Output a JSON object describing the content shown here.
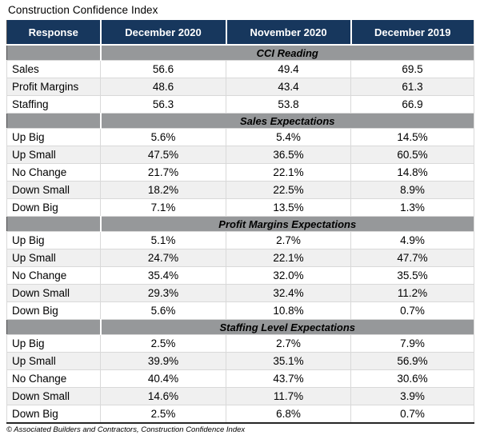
{
  "title": "Construction Confidence Index",
  "footer": "© Associated Builders and Contractors, Construction Confidence Index",
  "colors": {
    "header_bg": "#17375D",
    "header_text": "#FFFFFF",
    "band_bg": "#96989A",
    "alt_row_bg": "#F0F0F0"
  },
  "chart_data": {
    "type": "table",
    "title": "Construction Confidence Index",
    "columns": [
      "Response",
      "December 2020",
      "November 2020",
      "December 2019"
    ],
    "sections": [
      {
        "header": "CCI Reading",
        "rows": [
          {
            "label": "Sales",
            "values": [
              "56.6",
              "49.4",
              "69.5"
            ]
          },
          {
            "label": "Profit Margins",
            "values": [
              "48.6",
              "43.4",
              "61.3"
            ]
          },
          {
            "label": "Staffing",
            "values": [
              "56.3",
              "53.8",
              "66.9"
            ]
          }
        ]
      },
      {
        "header": "Sales Expectations",
        "rows": [
          {
            "label": "Up Big",
            "values": [
              "5.6%",
              "5.4%",
              "14.5%"
            ]
          },
          {
            "label": "Up Small",
            "values": [
              "47.5%",
              "36.5%",
              "60.5%"
            ]
          },
          {
            "label": "No Change",
            "values": [
              "21.7%",
              "22.1%",
              "14.8%"
            ]
          },
          {
            "label": "Down Small",
            "values": [
              "18.2%",
              "22.5%",
              "8.9%"
            ]
          },
          {
            "label": "Down Big",
            "values": [
              "7.1%",
              "13.5%",
              "1.3%"
            ]
          }
        ]
      },
      {
        "header": "Profit Margins Expectations",
        "rows": [
          {
            "label": "Up Big",
            "values": [
              "5.1%",
              "2.7%",
              "4.9%"
            ]
          },
          {
            "label": "Up Small",
            "values": [
              "24.7%",
              "22.1%",
              "47.7%"
            ]
          },
          {
            "label": "No Change",
            "values": [
              "35.4%",
              "32.0%",
              "35.5%"
            ]
          },
          {
            "label": "Down Small",
            "values": [
              "29.3%",
              "32.4%",
              "11.2%"
            ]
          },
          {
            "label": "Down Big",
            "values": [
              "5.6%",
              "10.8%",
              "0.7%"
            ]
          }
        ]
      },
      {
        "header": "Staffing Level Expectations",
        "rows": [
          {
            "label": "Up Big",
            "values": [
              "2.5%",
              "2.7%",
              "7.9%"
            ]
          },
          {
            "label": "Up Small",
            "values": [
              "39.9%",
              "35.1%",
              "56.9%"
            ]
          },
          {
            "label": "No Change",
            "values": [
              "40.4%",
              "43.7%",
              "30.6%"
            ]
          },
          {
            "label": "Down Small",
            "values": [
              "14.6%",
              "11.7%",
              "3.9%"
            ]
          },
          {
            "label": "Down Big",
            "values": [
              "2.5%",
              "6.8%",
              "0.7%"
            ]
          }
        ]
      }
    ]
  }
}
